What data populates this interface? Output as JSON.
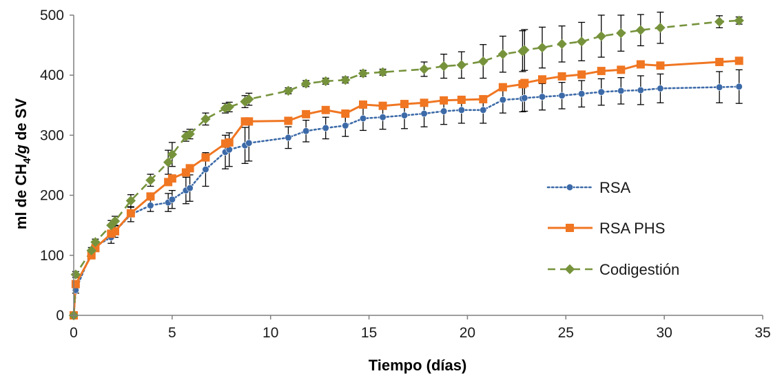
{
  "colors": {
    "rsa": "#3c6aa8",
    "rsa_phs": "#f07622",
    "codigestion": "#76933c",
    "axis": "#7f7f7f",
    "error_bar": "#000000"
  },
  "chart_data": {
    "type": "line",
    "xlabel": "Tiempo (días)",
    "ylabel": {
      "main": "ml de CH",
      "sub": "4",
      "italic": "/g",
      "rest": " de SV"
    },
    "xlim": [
      0,
      35
    ],
    "ylim": [
      0,
      500
    ],
    "xticks": [
      0,
      5,
      10,
      15,
      20,
      25,
      30,
      35
    ],
    "yticks": [
      0,
      100,
      200,
      300,
      400,
      500
    ],
    "grid": false,
    "legend_position": "right",
    "series": [
      {
        "name": "RSA",
        "style": "dotted",
        "marker": "circle",
        "x": [
          0,
          0.1,
          0.9,
          1.1,
          1.9,
          2.1,
          2.9,
          3.9,
          4.8,
          5.0,
          5.7,
          5.9,
          6.7,
          7.7,
          7.9,
          8.7,
          8.9,
          10.9,
          11.8,
          12.8,
          13.8,
          14.7,
          15.7,
          16.8,
          17.8,
          18.8,
          19.7,
          20.8,
          21.8,
          22.8,
          22.9,
          23.8,
          24.8,
          25.8,
          26.8,
          27.8,
          28.8,
          29.8,
          32.8,
          33.8
        ],
        "y": [
          0,
          42,
          105,
          115,
          130,
          140,
          168,
          183,
          188,
          193,
          208,
          212,
          243,
          272,
          276,
          283,
          287,
          296,
          307,
          312,
          316,
          328,
          330,
          333,
          336,
          340,
          342,
          342,
          359,
          361,
          362,
          364,
          366,
          369,
          372,
          374,
          375,
          378,
          380,
          381
        ],
        "err": [
          0,
          5,
          5,
          8,
          10,
          10,
          12,
          10,
          15,
          15,
          22,
          22,
          28,
          28,
          28,
          30,
          30,
          18,
          18,
          18,
          18,
          20,
          20,
          22,
          22,
          22,
          22,
          22,
          22,
          22,
          22,
          22,
          22,
          22,
          22,
          22,
          24,
          24,
          26,
          28
        ]
      },
      {
        "name": "RSA PHS",
        "style": "solid",
        "marker": "square",
        "x": [
          0,
          0.1,
          0.9,
          1.1,
          1.9,
          2.1,
          2.9,
          3.9,
          4.8,
          5.0,
          5.7,
          5.9,
          6.7,
          7.7,
          7.9,
          8.7,
          8.9,
          10.9,
          11.8,
          12.8,
          13.8,
          14.7,
          15.7,
          16.8,
          17.8,
          18.8,
          19.7,
          20.8,
          21.8,
          22.8,
          22.9,
          23.8,
          24.8,
          25.8,
          26.8,
          27.8,
          28.8,
          29.8,
          32.8,
          33.8
        ],
        "y": [
          0,
          52,
          100,
          112,
          136,
          140,
          170,
          198,
          222,
          228,
          238,
          245,
          263,
          286,
          288,
          323,
          323,
          324,
          335,
          342,
          336,
          351,
          349,
          352,
          354,
          358,
          359,
          360,
          380,
          385,
          387,
          393,
          398,
          401,
          407,
          409,
          418,
          416,
          422,
          424
        ],
        "err": [
          0,
          0,
          0,
          0,
          0,
          0,
          0,
          0,
          0,
          0,
          0,
          0,
          0,
          0,
          0,
          0,
          0,
          0,
          0,
          0,
          0,
          0,
          0,
          0,
          0,
          0,
          0,
          0,
          0,
          0,
          0,
          0,
          0,
          0,
          0,
          0,
          0,
          0,
          0,
          0
        ]
      },
      {
        "name": "Codigestión",
        "style": "dashed",
        "marker": "diamond",
        "x": [
          0,
          0.1,
          0.9,
          1.1,
          1.9,
          2.1,
          2.9,
          3.9,
          4.8,
          5.0,
          5.7,
          5.9,
          6.7,
          7.7,
          7.9,
          8.7,
          8.9,
          10.9,
          11.8,
          12.8,
          13.8,
          14.7,
          15.7,
          17.8,
          18.8,
          19.7,
          20.8,
          21.8,
          22.8,
          22.9,
          23.8,
          24.8,
          25.8,
          26.8,
          27.8,
          28.8,
          29.8,
          32.8,
          33.8
        ],
        "y": [
          0,
          68,
          108,
          122,
          150,
          157,
          191,
          225,
          255,
          268,
          298,
          302,
          327,
          345,
          347,
          356,
          360,
          374,
          386,
          390,
          392,
          403,
          405,
          410,
          415,
          417,
          423,
          435,
          440,
          442,
          446,
          452,
          456,
          465,
          470,
          475,
          479,
          489,
          491
        ],
        "err": [
          0,
          5,
          5,
          5,
          8,
          8,
          10,
          10,
          20,
          20,
          8,
          8,
          10,
          8,
          8,
          10,
          10,
          5,
          5,
          5,
          5,
          5,
          5,
          12,
          20,
          22,
          28,
          30,
          34,
          34,
          34,
          30,
          32,
          35,
          30,
          26,
          26,
          10,
          6
        ]
      }
    ]
  }
}
